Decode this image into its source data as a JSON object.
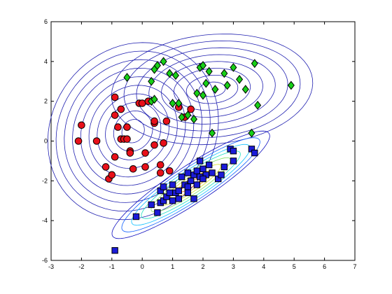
{
  "chart_data": {
    "type": "scatter",
    "title": "",
    "xlabel": "",
    "ylabel": "",
    "xlim": [
      -3,
      7
    ],
    "ylim": [
      -6,
      6
    ],
    "xticks": [
      "-3",
      "-2",
      "-1",
      "0",
      "1",
      "2",
      "3",
      "4",
      "5",
      "6",
      "7"
    ],
    "yticks": [
      "-6",
      "-4",
      "-2",
      "0",
      "2",
      "4",
      "6"
    ],
    "grid": false,
    "legend": "none",
    "series": [
      {
        "marker": "circle",
        "color": "#e8101a",
        "points": [
          [
            -2.1,
            0.0
          ],
          [
            -2.0,
            0.8
          ],
          [
            -1.5,
            0.0
          ],
          [
            -1.2,
            -1.3
          ],
          [
            -1.1,
            -1.9
          ],
          [
            -1.0,
            -1.7
          ],
          [
            -0.9,
            2.2
          ],
          [
            -0.9,
            1.3
          ],
          [
            -0.9,
            -0.8
          ],
          [
            -0.8,
            0.7
          ],
          [
            -0.7,
            1.6
          ],
          [
            -0.7,
            0.1
          ],
          [
            -0.6,
            0.1
          ],
          [
            -0.5,
            0.1
          ],
          [
            -0.5,
            0.7
          ],
          [
            -0.4,
            -0.5
          ],
          [
            -0.4,
            -0.6
          ],
          [
            -0.3,
            -1.4
          ],
          [
            -0.1,
            1.9
          ],
          [
            0.0,
            1.9
          ],
          [
            0.1,
            -0.6
          ],
          [
            0.1,
            -1.3
          ],
          [
            0.2,
            2.0
          ],
          [
            0.4,
            -0.2
          ],
          [
            0.4,
            0.9
          ],
          [
            0.4,
            1.0
          ],
          [
            0.6,
            -1.2
          ],
          [
            0.6,
            -1.6
          ],
          [
            0.7,
            -0.1
          ],
          [
            0.8,
            1.0
          ],
          [
            0.9,
            -1.5
          ],
          [
            1.2,
            1.7
          ],
          [
            1.6,
            1.6
          ],
          [
            1.4,
            1.2
          ]
        ]
      },
      {
        "marker": "diamond",
        "color": "#17d017",
        "points": [
          [
            -0.5,
            3.2
          ],
          [
            0.3,
            3.0
          ],
          [
            0.3,
            2.0
          ],
          [
            0.4,
            2.1
          ],
          [
            0.4,
            3.6
          ],
          [
            0.5,
            3.8
          ],
          [
            0.7,
            4.0
          ],
          [
            0.9,
            3.4
          ],
          [
            1.0,
            1.9
          ],
          [
            1.1,
            3.3
          ],
          [
            1.2,
            1.9
          ],
          [
            1.3,
            1.2
          ],
          [
            1.5,
            1.3
          ],
          [
            1.7,
            1.1
          ],
          [
            1.8,
            2.4
          ],
          [
            1.9,
            3.7
          ],
          [
            2.0,
            2.3
          ],
          [
            2.0,
            3.8
          ],
          [
            2.1,
            2.9
          ],
          [
            2.2,
            3.5
          ],
          [
            2.4,
            2.6
          ],
          [
            2.7,
            3.4
          ],
          [
            2.8,
            2.8
          ],
          [
            3.0,
            3.7
          ],
          [
            3.2,
            3.1
          ],
          [
            3.4,
            2.6
          ],
          [
            3.6,
            0.4
          ],
          [
            3.7,
            3.9
          ],
          [
            3.8,
            1.8
          ],
          [
            2.3,
            0.4
          ],
          [
            4.9,
            2.8
          ]
        ]
      },
      {
        "marker": "square",
        "color": "#1b1bd8",
        "points": [
          [
            -0.9,
            -5.5
          ],
          [
            -0.2,
            -3.8
          ],
          [
            0.3,
            -3.2
          ],
          [
            0.6,
            -3.1
          ],
          [
            0.5,
            -3.6
          ],
          [
            0.6,
            -2.5
          ],
          [
            0.7,
            -2.3
          ],
          [
            0.7,
            -3.0
          ],
          [
            0.8,
            -2.8
          ],
          [
            0.9,
            -2.6
          ],
          [
            1.0,
            -2.2
          ],
          [
            1.0,
            -3.0
          ],
          [
            1.1,
            -2.6
          ],
          [
            1.2,
            -2.5
          ],
          [
            1.2,
            -2.9
          ],
          [
            1.3,
            -1.8
          ],
          [
            1.4,
            -2.2
          ],
          [
            1.5,
            -2.3
          ],
          [
            1.5,
            -1.6
          ],
          [
            1.6,
            -2.0
          ],
          [
            1.7,
            -1.7
          ],
          [
            1.8,
            -1.5
          ],
          [
            1.8,
            -2.2
          ],
          [
            1.9,
            -1.0
          ],
          [
            1.9,
            -1.8
          ],
          [
            2.0,
            -1.4
          ],
          [
            2.1,
            -1.7
          ],
          [
            2.2,
            -1.2
          ],
          [
            2.3,
            -1.6
          ],
          [
            2.5,
            -1.9
          ],
          [
            2.6,
            -1.7
          ],
          [
            2.7,
            -1.3
          ],
          [
            2.9,
            -0.4
          ],
          [
            3.0,
            -0.5
          ],
          [
            3.0,
            -1.0
          ],
          [
            3.6,
            -0.4
          ],
          [
            3.7,
            -0.6
          ],
          [
            1.7,
            -2.9
          ],
          [
            2.0,
            -1.9
          ],
          [
            1.5,
            -2.6
          ]
        ]
      }
    ],
    "contours": [
      {
        "center": [
          -0.3,
          0.5
        ],
        "sx": 1.06,
        "sy": 1.68,
        "rho": 0.12,
        "levels": 10,
        "palette": "blue"
      },
      {
        "center": [
          2.3,
          2.6
        ],
        "sx": 1.25,
        "sy": 1.05,
        "rho": 0.12,
        "levels": 8,
        "palette": "blue"
      },
      {
        "center": [
          1.6,
          -2.2
        ],
        "sx": 0.98,
        "sy": 1.02,
        "rho": 0.91,
        "levels": 8,
        "palette": "jet"
      }
    ]
  }
}
